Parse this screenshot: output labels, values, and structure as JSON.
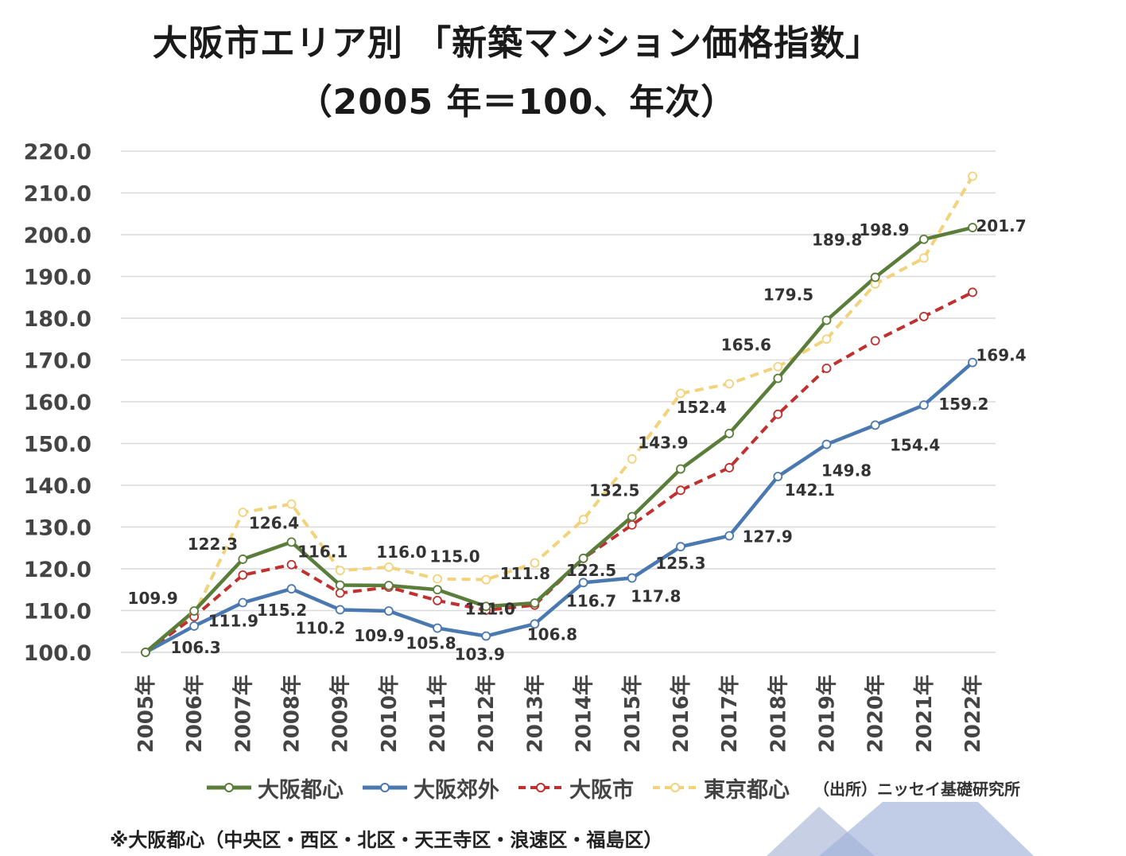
{
  "title": {
    "line1": "大阪市エリア別 「新築マンション価格指数」",
    "line2": "（2005 年＝100、年次）"
  },
  "legend": {
    "items": [
      {
        "label": "大阪都心",
        "color": "#5a7d3a",
        "style": "solid"
      },
      {
        "label": "大阪郊外",
        "color": "#4a78b0",
        "style": "solid"
      },
      {
        "label": "大阪市",
        "color": "#c0302e",
        "style": "dashed"
      },
      {
        "label": "東京都心",
        "color": "#f2d27a",
        "style": "dashed"
      }
    ],
    "source": "（出所）ニッセイ基礎研究所"
  },
  "footnote": "※大阪都心（中央区・西区・北区・天王寺区・浪速区・福島区）",
  "chart_data": {
    "type": "line",
    "title": "大阪市エリア別 「新築マンション価格指数」（2005 年＝100、年次）",
    "categories": [
      "2005年",
      "2006年",
      "2007年",
      "2008年",
      "2009年",
      "2010年",
      "2011年",
      "2012年",
      "2013年",
      "2014年",
      "2015年",
      "2016年",
      "2017年",
      "2018年",
      "2019年",
      "2020年",
      "2021年",
      "2022年"
    ],
    "ylim": [
      100,
      220
    ],
    "yticks": [
      "100.0",
      "110.0",
      "120.0",
      "130.0",
      "140.0",
      "150.0",
      "160.0",
      "170.0",
      "180.0",
      "190.0",
      "200.0",
      "210.0",
      "220.0"
    ],
    "grid": true,
    "legend_position": "bottom",
    "series": [
      {
        "name": "大阪都心",
        "color": "#5a7d3a",
        "dashed": false,
        "values": [
          100.0,
          109.9,
          122.3,
          126.4,
          116.1,
          116.0,
          115.0,
          111.0,
          111.8,
          122.5,
          132.5,
          143.9,
          152.4,
          165.6,
          179.5,
          189.8,
          198.9,
          201.7
        ]
      },
      {
        "name": "大阪郊外",
        "color": "#4a78b0",
        "dashed": false,
        "values": [
          100.0,
          106.3,
          111.9,
          115.2,
          110.2,
          109.9,
          105.8,
          103.9,
          106.8,
          116.7,
          117.8,
          125.3,
          127.9,
          142.1,
          149.8,
          154.4,
          159.2,
          169.4
        ]
      },
      {
        "name": "大阪市",
        "color": "#c0302e",
        "dashed": true,
        "values": [
          100.0,
          108.5,
          118.5,
          121.0,
          114.2,
          115.6,
          112.4,
          110.1,
          111.3,
          122.5,
          130.5,
          138.8,
          144.2,
          157.0,
          168.0,
          174.6,
          180.4,
          186.2
        ]
      },
      {
        "name": "東京都心",
        "color": "#f2d27a",
        "dashed": true,
        "values": [
          100.0,
          109.0,
          133.5,
          135.5,
          119.6,
          120.4,
          117.6,
          117.4,
          121.4,
          131.8,
          146.3,
          162.0,
          164.3,
          168.4,
          175.0,
          188.2,
          194.4,
          214.0
        ]
      }
    ],
    "data_labels": {
      "大阪都心": [
        "",
        "109.9",
        "122.3",
        "126.4",
        "116.1",
        "116.0",
        "115.0",
        "111.0",
        "111.8",
        "122.5",
        "132.5",
        "143.9",
        "152.4",
        "165.6",
        "179.5",
        "189.8",
        "198.9",
        "201.7"
      ],
      "大阪郊外": [
        "",
        "106.3",
        "111.9",
        "115.2",
        "110.2",
        "109.9",
        "105.8",
        "103.9",
        "106.8",
        "116.7",
        "117.8",
        "125.3",
        "127.9",
        "142.1",
        "149.8",
        "154.4",
        "159.2",
        "169.4"
      ]
    }
  }
}
